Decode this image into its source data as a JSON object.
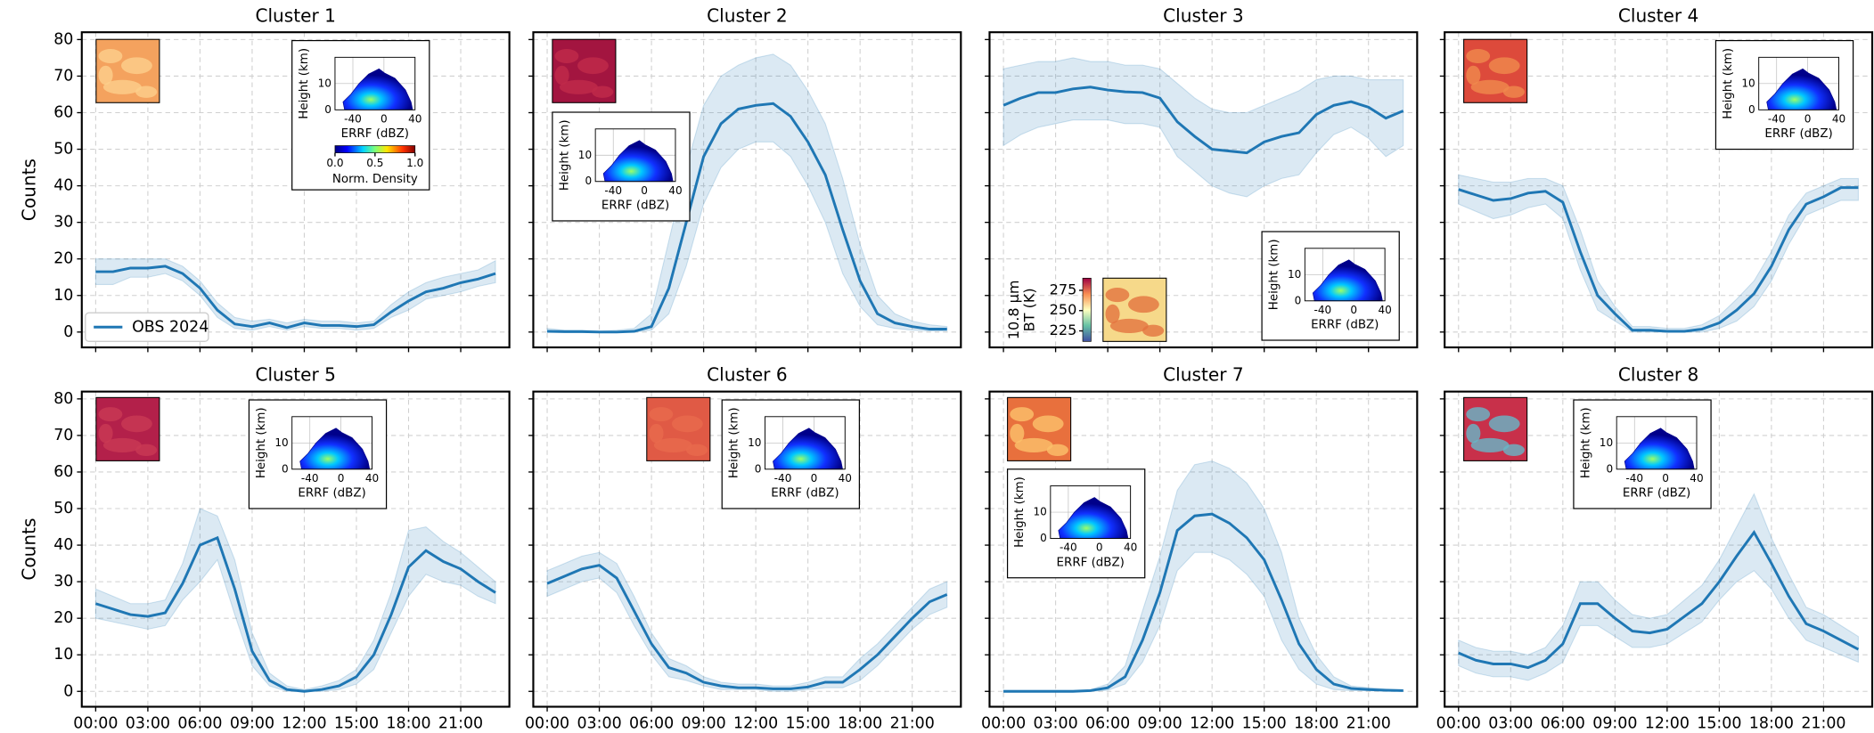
{
  "chart_data": [
    {
      "type": "line",
      "title": "Cluster 1",
      "ylabel": "Counts",
      "x": [
        0,
        1,
        2,
        3,
        4,
        5,
        6,
        7,
        8,
        9,
        10,
        11,
        12,
        13,
        14,
        15,
        16,
        17,
        18,
        19,
        20,
        21,
        22,
        23
      ],
      "series": [
        {
          "name": "OBS 2024",
          "color": "#1f77b4",
          "values": [
            16.5,
            16.5,
            17.5,
            17.5,
            18,
            16,
            12,
            6,
            2.2,
            1.5,
            2.5,
            1.2,
            2.5,
            1.8,
            1.8,
            1.5,
            2,
            5.5,
            8.5,
            11,
            12,
            13.5,
            14.5,
            16
          ],
          "lower": [
            13,
            13,
            15,
            15,
            16,
            14,
            10,
            4,
            1,
            0.5,
            1.5,
            0.5,
            1.5,
            1,
            1,
            0.5,
            1,
            4,
            6,
            9,
            10,
            11,
            12.5,
            13.5
          ],
          "upper": [
            20,
            20,
            20,
            20,
            20,
            18,
            14,
            8,
            4,
            3,
            3.5,
            2.5,
            3.5,
            3,
            3,
            2.5,
            3,
            7.5,
            11,
            13.5,
            15,
            16,
            17,
            19.5
          ]
        }
      ],
      "xlim": [
        -0.8,
        23.8
      ],
      "ylim": [
        -4.2,
        82
      ],
      "xticks": [
        0,
        3,
        6,
        9,
        12,
        15,
        18,
        21
      ],
      "yticks": [
        0,
        10,
        20,
        30,
        40,
        50,
        60,
        70,
        80
      ],
      "grid": true,
      "legend": "lower left",
      "xtick_labels": false,
      "ytick_labels": true,
      "inset_colorbar": {
        "label": "Norm. Density",
        "lim": [
          0,
          1
        ],
        "ticks": [
          {
            "value": 0,
            "label": "0.0"
          },
          {
            "value": 0.5,
            "label": "0.5"
          },
          {
            "value": 1,
            "label": "1.0"
          }
        ]
      }
    },
    {
      "type": "line",
      "title": "Cluster 2",
      "x": [
        0,
        1,
        2,
        3,
        4,
        5,
        6,
        7,
        8,
        9,
        10,
        11,
        12,
        13,
        14,
        15,
        16,
        17,
        18,
        19,
        20,
        21,
        22,
        23
      ],
      "series": [
        {
          "color": "#1f77b4",
          "values": [
            0.2,
            0.1,
            0.1,
            0,
            0,
            0.2,
            1.5,
            12,
            30,
            48,
            57,
            61,
            62,
            62.5,
            59,
            52,
            43,
            28,
            14,
            5,
            2.5,
            1.5,
            0.8,
            0.8
          ],
          "lower": [
            0,
            0,
            0,
            0,
            0,
            0,
            0.5,
            5,
            18,
            35,
            45,
            50,
            52,
            52,
            48,
            40,
            30,
            16,
            7,
            2,
            1,
            0.5,
            0.3,
            0.3
          ],
          "upper": [
            1,
            0.5,
            0.5,
            0.3,
            0.5,
            1,
            5,
            25,
            45,
            62,
            70,
            73,
            75,
            76,
            73,
            66,
            57,
            42,
            24,
            10,
            5,
            3,
            2,
            1.5
          ]
        }
      ],
      "xlim": [
        -0.8,
        23.8
      ],
      "ylim": [
        -4.2,
        82
      ],
      "xticks": [
        0,
        3,
        6,
        9,
        12,
        15,
        18,
        21
      ],
      "yticks": [
        0,
        10,
        20,
        30,
        40,
        50,
        60,
        70,
        80
      ],
      "grid": true,
      "xtick_labels": false,
      "ytick_labels": false
    },
    {
      "type": "line",
      "title": "Cluster 3",
      "x": [
        0,
        1,
        2,
        3,
        4,
        5,
        6,
        7,
        8,
        9,
        10,
        11,
        12,
        13,
        14,
        15,
        16,
        17,
        18,
        19,
        20,
        21,
        22,
        23
      ],
      "series": [
        {
          "color": "#1f77b4",
          "values": [
            62,
            64,
            65.5,
            65.5,
            66.5,
            67,
            66.2,
            65.7,
            65.5,
            64,
            57.5,
            53.5,
            50,
            49.5,
            49,
            52,
            53.5,
            54.5,
            59.5,
            62,
            63,
            61.5,
            58.5,
            60.5
          ],
          "lower": [
            51,
            54,
            56,
            57,
            58,
            58,
            58,
            57,
            57,
            56,
            48,
            44,
            40,
            38,
            37,
            40,
            42,
            43,
            49,
            54,
            56,
            53,
            48,
            51
          ],
          "upper": [
            72,
            73,
            74,
            74,
            75,
            74,
            74,
            73,
            73,
            72,
            68,
            64,
            61,
            60,
            60,
            62,
            64,
            66,
            69,
            70,
            70,
            69,
            69,
            69
          ]
        }
      ],
      "xlim": [
        -0.8,
        23.8
      ],
      "ylim": [
        -4.2,
        82
      ],
      "xticks": [
        0,
        3,
        6,
        9,
        12,
        15,
        18,
        21
      ],
      "yticks": [
        0,
        10,
        20,
        30,
        40,
        50,
        60,
        70,
        80
      ],
      "grid": true,
      "xtick_labels": false,
      "ytick_labels": false,
      "thumbnail_colorbar": {
        "label": [
          "10.8 μm",
          "BT (K)"
        ],
        "lim": [
          212,
          290
        ],
        "ticks": [
          225,
          250,
          275
        ]
      }
    },
    {
      "type": "line",
      "title": "Cluster 4",
      "x": [
        0,
        1,
        2,
        3,
        4,
        5,
        6,
        7,
        8,
        9,
        10,
        11,
        12,
        13,
        14,
        15,
        16,
        17,
        18,
        19,
        20,
        21,
        22,
        23
      ],
      "series": [
        {
          "color": "#1f77b4",
          "values": [
            39,
            37.5,
            36,
            36.5,
            38,
            38.5,
            35.5,
            22,
            10,
            5,
            0.5,
            0.5,
            0.2,
            0.2,
            0.8,
            2.5,
            6,
            10.5,
            18,
            28,
            35,
            37,
            39.5,
            39.5
          ],
          "lower": [
            35,
            33,
            31,
            32,
            34,
            35,
            31,
            17,
            6,
            3,
            0,
            0,
            0,
            0,
            0,
            1,
            3,
            7,
            14,
            24,
            32,
            34,
            36,
            36
          ],
          "upper": [
            43,
            42,
            41,
            41,
            42,
            42,
            40,
            28,
            14,
            7,
            1.5,
            1.5,
            1,
            1,
            2,
            4.5,
            9,
            14,
            22,
            32,
            38,
            40,
            42,
            42
          ]
        }
      ],
      "xlim": [
        -0.8,
        23.8
      ],
      "ylim": [
        -4.2,
        82
      ],
      "xticks": [
        0,
        3,
        6,
        9,
        12,
        15,
        18,
        21
      ],
      "yticks": [
        0,
        10,
        20,
        30,
        40,
        50,
        60,
        70,
        80
      ],
      "grid": true,
      "xtick_labels": false,
      "ytick_labels": false
    },
    {
      "type": "line",
      "title": "Cluster 5",
      "ylabel": "Counts",
      "x": [
        0,
        1,
        2,
        3,
        4,
        5,
        6,
        7,
        8,
        9,
        10,
        11,
        12,
        13,
        14,
        15,
        16,
        17,
        18,
        19,
        20,
        21,
        22,
        23
      ],
      "series": [
        {
          "color": "#1f77b4",
          "values": [
            24,
            22.5,
            21,
            20.5,
            21.5,
            29.5,
            40,
            42,
            28,
            11,
            3,
            0.5,
            0,
            0.5,
            1.5,
            4,
            10,
            21,
            34,
            38.5,
            35.5,
            33.5,
            30,
            27
          ],
          "lower": [
            20,
            19,
            18,
            17,
            18,
            25,
            30,
            36,
            21,
            7,
            1.5,
            0,
            0,
            0,
            0.5,
            2,
            6,
            16,
            26,
            32,
            30,
            29,
            26,
            24
          ],
          "upper": [
            28,
            26,
            24,
            24,
            25,
            35,
            50,
            48,
            36,
            16,
            5,
            1.5,
            0.5,
            1.5,
            3,
            6,
            14,
            27,
            44,
            45,
            41,
            38,
            34,
            30
          ]
        }
      ],
      "xlim": [
        -0.8,
        23.8
      ],
      "ylim": [
        -4.2,
        82
      ],
      "xticks": [
        {
          "value": 0,
          "label": "00:00"
        },
        {
          "value": 3,
          "label": "03:00"
        },
        {
          "value": 6,
          "label": "06:00"
        },
        {
          "value": 9,
          "label": "09:00"
        },
        {
          "value": 12,
          "label": "12:00"
        },
        {
          "value": 15,
          "label": "15:00"
        },
        {
          "value": 18,
          "label": "18:00"
        },
        {
          "value": 21,
          "label": "21:00"
        }
      ],
      "yticks": [
        0,
        10,
        20,
        30,
        40,
        50,
        60,
        70,
        80
      ],
      "grid": true,
      "xtick_labels": true,
      "ytick_labels": true
    },
    {
      "type": "line",
      "title": "Cluster 6",
      "x": [
        0,
        1,
        2,
        3,
        4,
        5,
        6,
        7,
        8,
        9,
        10,
        11,
        12,
        13,
        14,
        15,
        16,
        17,
        18,
        19,
        20,
        21,
        22,
        23
      ],
      "series": [
        {
          "color": "#1f77b4",
          "values": [
            29.5,
            31.5,
            33.5,
            34.5,
            31,
            22,
            13,
            6.5,
            5,
            2.5,
            1.5,
            1,
            1,
            0.7,
            0.7,
            1.2,
            2.5,
            2.5,
            6,
            10,
            15,
            20,
            24.5,
            26.5
          ],
          "lower": [
            26,
            28,
            30,
            31,
            27,
            18,
            10,
            4,
            3,
            1.5,
            0.5,
            0.5,
            0.5,
            0,
            0,
            0.5,
            1,
            1,
            3,
            7,
            12,
            17,
            21,
            23
          ],
          "upper": [
            33,
            35,
            37,
            38,
            35,
            26,
            16,
            9,
            7,
            4,
            2.5,
            2,
            2,
            1.5,
            1.5,
            2.5,
            4,
            4,
            9,
            13,
            18,
            23,
            28,
            30
          ]
        }
      ],
      "xlim": [
        -0.8,
        23.8
      ],
      "ylim": [
        -4.2,
        82
      ],
      "xticks": [
        {
          "value": 0,
          "label": "00:00"
        },
        {
          "value": 3,
          "label": "03:00"
        },
        {
          "value": 6,
          "label": "06:00"
        },
        {
          "value": 9,
          "label": "09:00"
        },
        {
          "value": 12,
          "label": "12:00"
        },
        {
          "value": 15,
          "label": "15:00"
        },
        {
          "value": 18,
          "label": "18:00"
        },
        {
          "value": 21,
          "label": "21:00"
        }
      ],
      "yticks": [
        0,
        10,
        20,
        30,
        40,
        50,
        60,
        70,
        80
      ],
      "grid": true,
      "xtick_labels": true,
      "ytick_labels": false
    },
    {
      "type": "line",
      "title": "Cluster 7",
      "x": [
        0,
        1,
        2,
        3,
        4,
        5,
        6,
        7,
        8,
        9,
        10,
        11,
        12,
        13,
        14,
        15,
        16,
        17,
        18,
        19,
        20,
        21,
        22,
        23
      ],
      "series": [
        {
          "color": "#1f77b4",
          "values": [
            0,
            0,
            0,
            0,
            0,
            0.2,
            1,
            4,
            14,
            27,
            44,
            48,
            48.5,
            46,
            42,
            36,
            25,
            13,
            6,
            2,
            0.8,
            0.5,
            0.3,
            0.2
          ],
          "lower": [
            0,
            0,
            0,
            0,
            0,
            0,
            0.3,
            2,
            8,
            18,
            33,
            38,
            38,
            36,
            32,
            26,
            14,
            6,
            2,
            0.5,
            0.2,
            0.2,
            0.1,
            0.1
          ],
          "upper": [
            0.3,
            0.3,
            0.3,
            0.3,
            0.3,
            0.5,
            2,
            7,
            22,
            37,
            55,
            62,
            63,
            61,
            57,
            50,
            38,
            20,
            10,
            4,
            1.5,
            1,
            0.7,
            0.5
          ]
        }
      ],
      "xlim": [
        -0.8,
        23.8
      ],
      "ylim": [
        -4.2,
        82
      ],
      "xticks": [
        {
          "value": 0,
          "label": "00:00"
        },
        {
          "value": 3,
          "label": "03:00"
        },
        {
          "value": 6,
          "label": "06:00"
        },
        {
          "value": 9,
          "label": "09:00"
        },
        {
          "value": 12,
          "label": "12:00"
        },
        {
          "value": 15,
          "label": "15:00"
        },
        {
          "value": 18,
          "label": "18:00"
        },
        {
          "value": 21,
          "label": "21:00"
        }
      ],
      "yticks": [
        0,
        10,
        20,
        30,
        40,
        50,
        60,
        70,
        80
      ],
      "grid": true,
      "xtick_labels": true,
      "ytick_labels": false
    },
    {
      "type": "line",
      "title": "Cluster 8",
      "x": [
        0,
        1,
        2,
        3,
        4,
        5,
        6,
        7,
        8,
        9,
        10,
        11,
        12,
        13,
        14,
        15,
        16,
        17,
        18,
        19,
        20,
        21,
        22,
        23
      ],
      "series": [
        {
          "color": "#1f77b4",
          "values": [
            10.5,
            8.5,
            7.5,
            7.5,
            6.5,
            8.5,
            13,
            24,
            24,
            20,
            16.5,
            16,
            17,
            20.5,
            24,
            30,
            37,
            43.5,
            35,
            26,
            18.5,
            16.5,
            14,
            11.5
          ],
          "lower": [
            7,
            5,
            4,
            4,
            3,
            5,
            8,
            18,
            18,
            15,
            12,
            12,
            13,
            16,
            19,
            25,
            30,
            33,
            28,
            20,
            14,
            12,
            10,
            8
          ],
          "upper": [
            14,
            12,
            11,
            11,
            10,
            12,
            18,
            30,
            30,
            25,
            21,
            20,
            21,
            25,
            29,
            36,
            45,
            54,
            42,
            32,
            23,
            21,
            18,
            15
          ]
        }
      ],
      "xlim": [
        -0.8,
        23.8
      ],
      "ylim": [
        -4.2,
        82
      ],
      "xticks": [
        {
          "value": 0,
          "label": "00:00"
        },
        {
          "value": 3,
          "label": "03:00"
        },
        {
          "value": 6,
          "label": "06:00"
        },
        {
          "value": 9,
          "label": "09:00"
        },
        {
          "value": 12,
          "label": "12:00"
        },
        {
          "value": 15,
          "label": "15:00"
        },
        {
          "value": 18,
          "label": "18:00"
        },
        {
          "value": 21,
          "label": "21:00"
        }
      ],
      "yticks": [
        0,
        10,
        20,
        30,
        40,
        50,
        60,
        70,
        80
      ],
      "grid": true,
      "xtick_labels": true,
      "ytick_labels": false
    }
  ],
  "inset_axes": {
    "xlabel": "ERRF (dBZ)",
    "ylabel": "Height (km)",
    "xlim": [
      -63,
      40
    ],
    "ylim": [
      0,
      20
    ],
    "xticks": [
      -40,
      0,
      40
    ],
    "yticks": [
      0,
      10
    ]
  }
}
